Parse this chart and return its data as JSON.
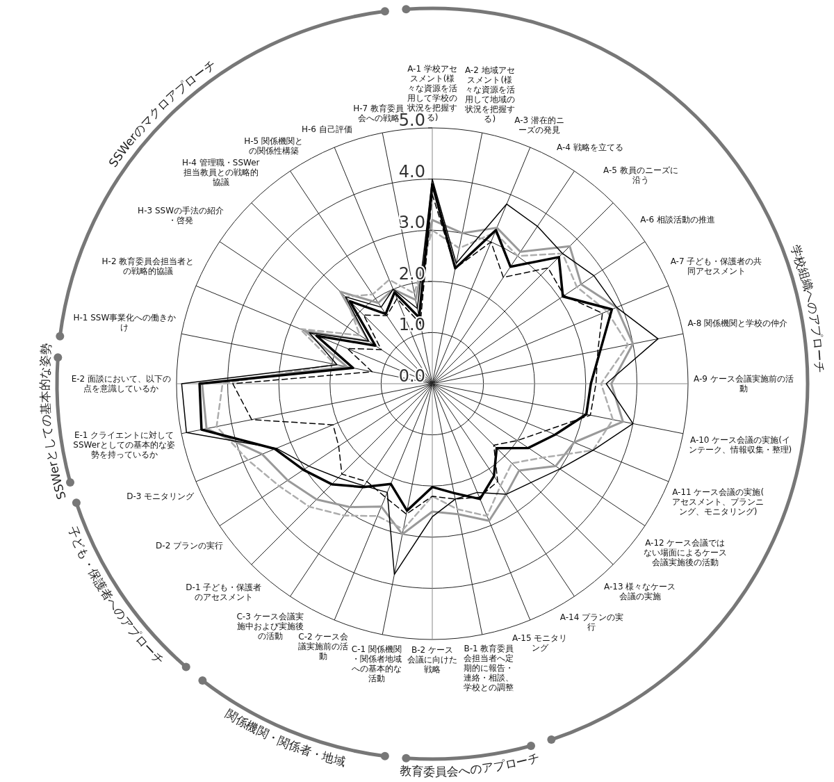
{
  "chart_data": {
    "type": "radar",
    "categories": [
      "A-1 学校アセスメント(様々な資源を活用して学校の状況を把握する)",
      "A-2 地域アセスメント(様々な資源を活用して地域の状況を把握する)",
      "A-3 潜在的ニーズの発見",
      "A-4 戦略を立てる",
      "A-5 教員のニーズに沿う",
      "A-6 相談活動の推進",
      "A-7 子ども・保護者の共同アセスメント",
      "A-8 関係機関と学校の仲介",
      "A-9 ケース会議実施前の活動",
      "A-10 ケース会議の実施(インテーク、情報収集・整理)",
      "A-11 ケース会議の実施(アセスメント、プランニング、モニタリング)",
      "A-12 ケース会議ではない場面によるケース会議実施後の活動",
      "A-13 様々なケース会議の実施",
      "A-14 プランの実行",
      "A-15 モニタリング",
      "B-1 教育委員会担当者へ定期的に報告・連絡・相談、学校との調整",
      "B-2 ケース会議に向けた戦略",
      "C-1 関係機関・関係者地域への基本的な活動",
      "C-2 ケース会議実施前の活動",
      "C-3 ケース会議実施中および実施後の活動",
      "D-1 子ども・保護者のアセスメント",
      "D-2 プランの実行",
      "D-3 モニタリング",
      "E-1 クライエントに対してSSWerとしての基本的な姿勢を持っているか",
      "E-2 面談において、以下の点を意識しているか",
      "H-1 SSW事業化への働きかけ",
      "H-2 教育委員会担当者との戦略的協議",
      "H-3 SSWの手法の紹介・啓発",
      "H-4 管理職・SSWer担当教員との戦略的協議",
      "H-5 関係機関との関係性構築",
      "H-6 自己評価",
      "H-7 教育委員会への戦略"
    ],
    "series": [
      {
        "color": "#999999",
        "line_style": "solid",
        "values": [
          3.2,
          3.0,
          3.3,
          3.1,
          3.8,
          3.5,
          3.9,
          4.0,
          3.5,
          3.8,
          3.0,
          2.9,
          2.4,
          2.6,
          2.9,
          2.6,
          2.5,
          3.0,
          2.6,
          2.9,
          3.2,
          3.4,
          3.6,
          4.5,
          4.5,
          1.7,
          2.7,
          1.5,
          2.54,
          1.9,
          2.0,
          1.67
        ]
      },
      {
        "color": "#adadad",
        "line_style": "dashed",
        "values": [
          3.0,
          2.7,
          3.2,
          3.0,
          3.6,
          3.4,
          3.7,
          3.9,
          3.3,
          3.6,
          3.4,
          2.6,
          2.2,
          2.4,
          2.8,
          2.5,
          2.2,
          2.9,
          2.8,
          3.1,
          3.4,
          3.6,
          3.9,
          4.3,
          4.1,
          1.94,
          2.8,
          1.7,
          2.4,
          2.1,
          2.2,
          1.8
        ]
      },
      {
        "color": "#000000",
        "line_style": "dashed",
        "values": [
          3.7,
          2.3,
          3.0,
          2.5,
          3.2,
          3.1,
          3.6,
          3.3,
          3.2,
          3.15,
          2.4,
          2.0,
          1.7,
          2.3,
          2.4,
          2.3,
          2.2,
          2.6,
          2.4,
          2.3,
          2.5,
          2.2,
          2.1,
          3.6,
          3.9,
          1.2,
          1.8,
          1.2,
          1.9,
          1.6,
          1.8,
          1.2
        ]
      },
      {
        "color": "#000000",
        "line_style": "solid",
        "values": [
          4.0,
          2.4,
          3.8,
          3.7,
          3.6,
          3.8,
          3.9,
          4.5,
          3.4,
          4.0,
          3.4,
          3.0,
          2.73,
          2.6,
          2.3,
          2.3,
          2.6,
          3.8,
          2.3,
          2.4,
          2.6,
          2.9,
          3.3,
          4.9,
          4.9,
          1.9,
          2.6,
          1.5,
          2.4,
          1.8,
          2.0,
          1.5
        ]
      },
      {
        "color": "#000000",
        "line_style": "solid",
        "values": [
          3.9,
          2.3,
          3.25,
          2.75,
          3.5,
          3.07,
          3.8,
          3.35,
          3.1,
          3.07,
          2.6,
          2.26,
          1.78,
          2.17,
          2.44,
          2.18,
          2.02,
          2.53,
          2.12,
          2.43,
          2.78,
          3.03,
          3.33,
          4.6,
          4.55,
          1.58,
          2.45,
          1.34,
          2.28,
          1.64,
          1.93,
          1.32
        ]
      }
    ],
    "ylim": [
      0,
      5
    ],
    "yticks": [
      {
        "value": 0,
        "label": "0.0"
      },
      {
        "value": 1,
        "label": "1.0"
      },
      {
        "value": 2,
        "label": "2.0"
      },
      {
        "value": 3,
        "label": "3.0"
      },
      {
        "value": 4,
        "label": "4.0"
      },
      {
        "value": 5,
        "label": "5.0"
      }
    ],
    "grid": true,
    "annotations": [
      "学校組織へのアプローチ",
      "教育委員会へのアプローチ",
      "関係機関・関係者・地域",
      "子ども・保護者へのアプローチ",
      "SSWerとしての基本的な姿勢",
      "SSWerのマクロアプローチ"
    ]
  }
}
